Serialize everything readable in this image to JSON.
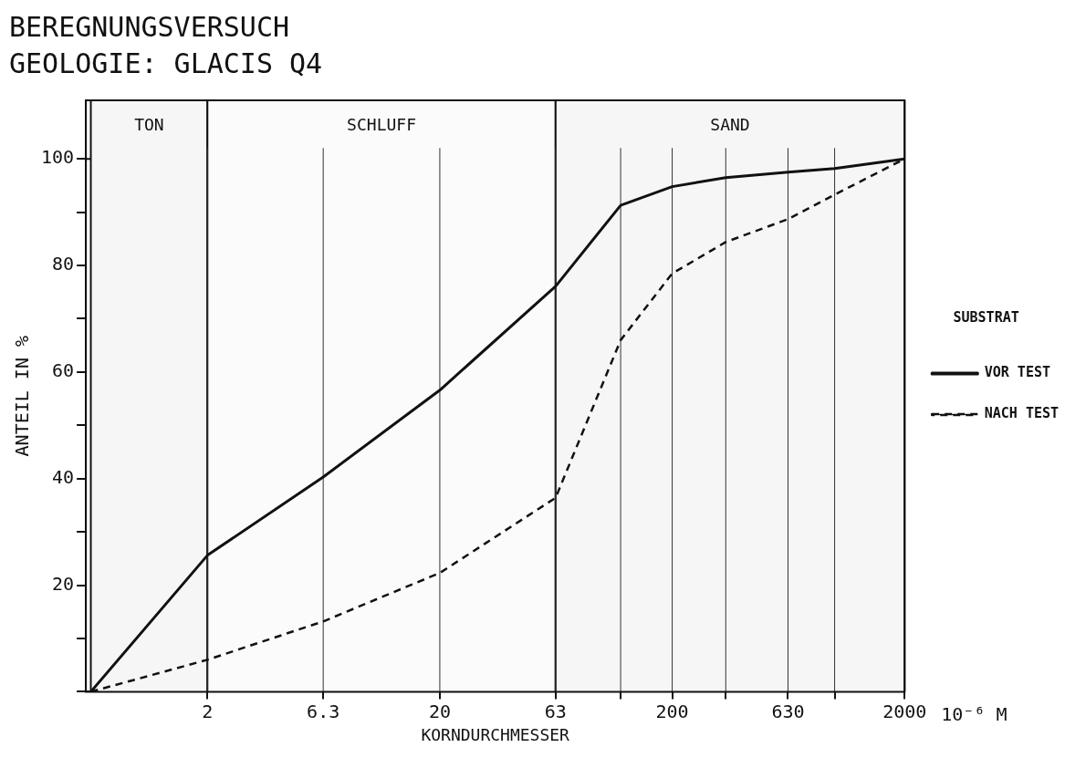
{
  "chart_data": {
    "type": "line",
    "title": "BEREGNUNGSVERSUCH",
    "subtitle": "GEOLOGIE: GLACIS Q4",
    "xlabel": "KORNDURCHMESSER",
    "ylabel": "ANTEIL IN %",
    "legend_title": "SUBSTRAT",
    "log": "x",
    "x": [
      0.63,
      2,
      6.3,
      20,
      63,
      120,
      200,
      340,
      630,
      1000,
      2000
    ],
    "series": [
      {
        "name": "VOR TEST",
        "color": "#111111",
        "line_style": "solid",
        "values": [
          0,
          25.6,
          40.3,
          56.6,
          76.1,
          91.3,
          94.8,
          96.5,
          97.5,
          98.2,
          100
        ]
      },
      {
        "name": "NACH TEST",
        "color": "#111111",
        "line_style": "dashed",
        "values": [
          0,
          6,
          13.2,
          22.3,
          36.4,
          66,
          78.5,
          84.4,
          88.7,
          93.3,
          100
        ]
      }
    ],
    "xlim": [
      0.63,
      2000
    ],
    "ylim": [
      0,
      111
    ],
    "xticks": [
      2,
      6.3,
      20,
      63,
      {
        "value": 120,
        "label": null
      },
      200,
      {
        "value": 340,
        "label": null
      },
      630,
      {
        "value": 1000,
        "label": null
      },
      2000
    ],
    "yticks": [
      {
        "value": 0,
        "label": null
      },
      {
        "value": 10,
        "label": null
      },
      20,
      {
        "value": 30,
        "label": null
      },
      40,
      {
        "value": 50,
        "label": null
      },
      60,
      {
        "value": 70,
        "label": null
      },
      80,
      {
        "value": 90,
        "label": null
      },
      100
    ],
    "ref_lines": [
      {
        "axis": "y",
        "value": 100,
        "label": null
      }
    ],
    "bands": [
      {
        "axis": "x",
        "from": 0.63,
        "to": 2,
        "label": "TON",
        "color": "#f6f6f6"
      },
      {
        "axis": "x",
        "from": 2,
        "to": 63,
        "label": "SCHLUFF",
        "color": "#fbfbfb"
      },
      {
        "axis": "x",
        "from": 63,
        "to": 2000,
        "label": "SAND",
        "color": "#f6f6f6"
      }
    ],
    "annotations": [
      "10⁻⁶ M"
    ],
    "grid": "x",
    "legend": "right",
    "marker": "none"
  }
}
